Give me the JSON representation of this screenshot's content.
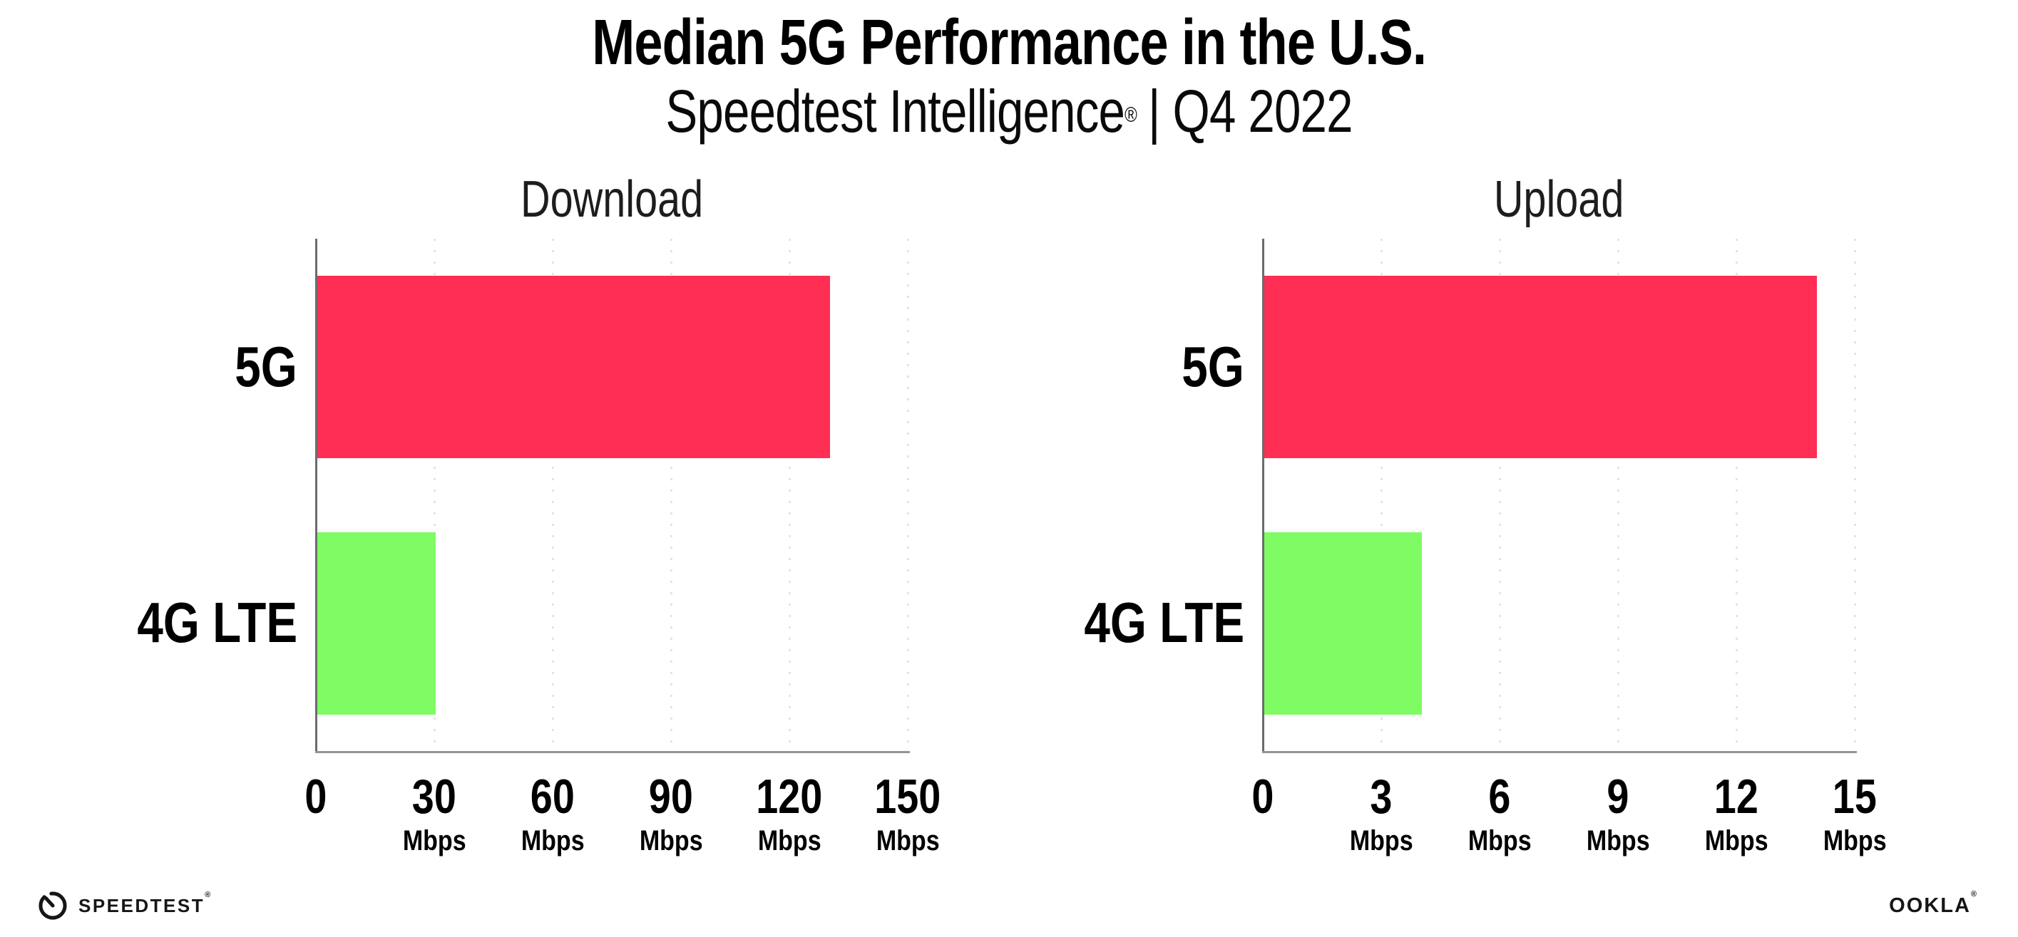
{
  "header": {
    "title": "Median 5G Performance in the U.S.",
    "subtitle_brand": "Speedtest Intelligence",
    "subtitle_mark": "®",
    "subtitle_rest": "| Q4 2022"
  },
  "chart_data": {
    "type": "bar",
    "orientation": "horizontal",
    "title": "Median 5G Performance in the U.S.",
    "subtitle": "Speedtest Intelligence® | Q4 2022",
    "categories": [
      "5G",
      "4G LTE"
    ],
    "bar_colors": [
      "#FF2E55",
      "#7FFB63"
    ],
    "unit": "Mbps",
    "grid": "vertical-dotted",
    "legend": "none",
    "charts": [
      {
        "title": "Download",
        "xlim": [
          0,
          150
        ],
        "ticks": [
          0,
          30,
          60,
          90,
          120,
          150
        ],
        "series": [
          {
            "name": "5G",
            "value": 130
          },
          {
            "name": "4G LTE",
            "value": 30
          }
        ]
      },
      {
        "title": "Upload",
        "xlim": [
          0,
          15
        ],
        "ticks": [
          0,
          3,
          6,
          9,
          12,
          15
        ],
        "series": [
          {
            "name": "5G",
            "value": 14
          },
          {
            "name": "4G LTE",
            "value": 4
          }
        ]
      }
    ]
  },
  "footer": {
    "speedtest_label": "SPEEDTEST",
    "speedtest_mark": "®",
    "ookla_label": "OOKLA",
    "ookla_mark": "®"
  }
}
